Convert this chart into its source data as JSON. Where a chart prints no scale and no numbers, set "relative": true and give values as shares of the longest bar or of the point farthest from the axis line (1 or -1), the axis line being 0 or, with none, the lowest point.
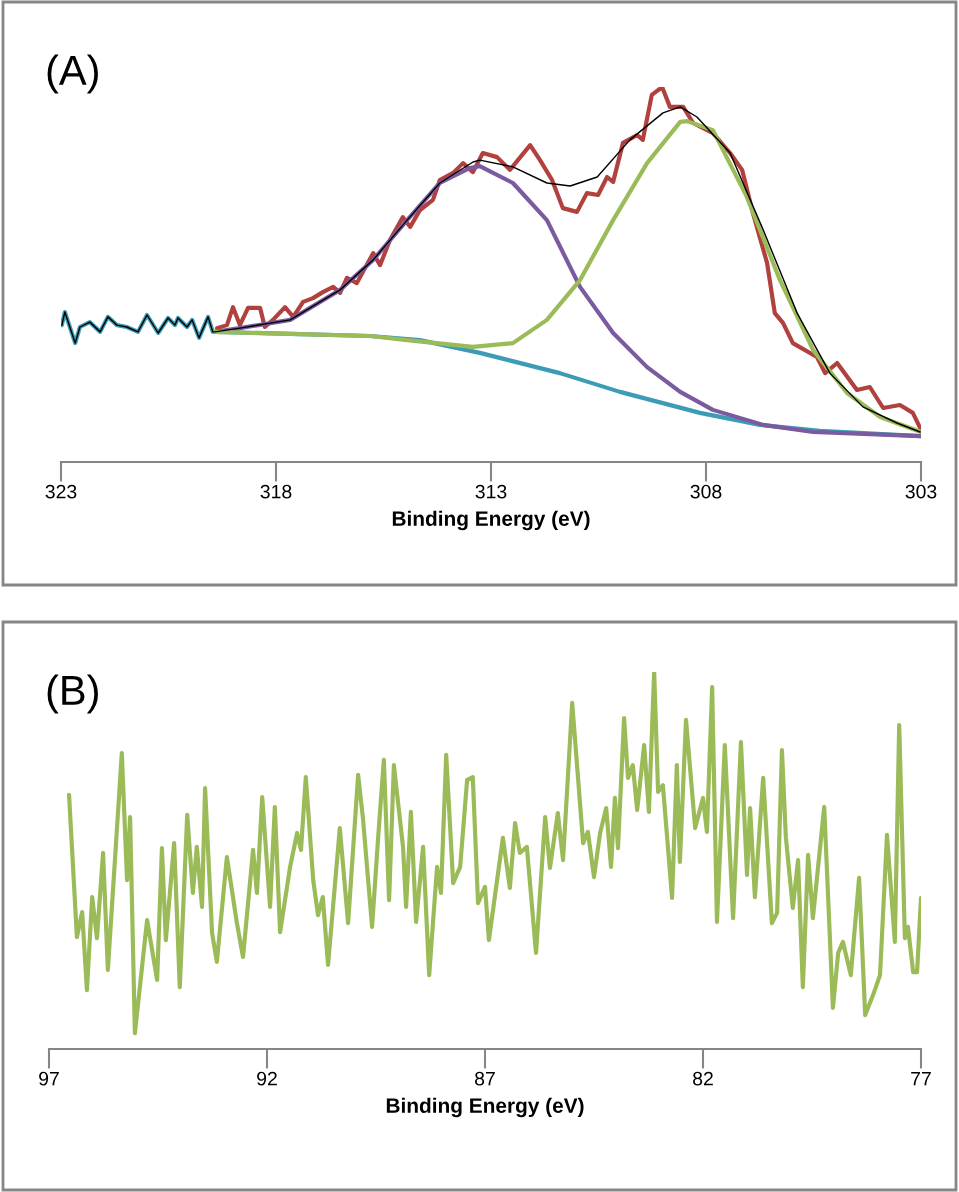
{
  "chart_data": [
    {
      "type": "line",
      "title": "(A)",
      "xlabel": "Binding Energy (eV)",
      "relative": true,
      "xlim": [
        323,
        303
      ],
      "xticks": [
        323,
        318,
        313,
        308,
        303
      ],
      "grid": false,
      "legend": false,
      "marker": "none",
      "line_style": "solid",
      "series": [
        {
          "color": "#b0413e",
          "x": [
            319.37,
            319.14,
            319.0,
            318.84,
            318.65,
            318.37,
            318.26,
            318.07,
            317.79,
            317.6,
            317.37,
            317.14,
            316.91,
            316.67,
            316.51,
            316.35,
            316.12,
            315.74,
            315.58,
            315.35,
            315.05,
            314.88,
            314.65,
            314.35,
            314.19,
            313.88,
            313.65,
            313.42,
            313.19,
            312.86,
            312.56,
            312.09,
            311.86,
            311.58,
            311.33,
            311.0,
            310.77,
            310.51,
            310.3,
            310.16,
            309.93,
            309.6,
            309.47,
            309.26,
            309.02,
            308.84,
            308.53,
            308.3,
            307.84,
            307.44,
            307.16,
            306.91,
            306.58,
            306.4,
            306.21,
            305.98,
            305.42,
            305.23,
            304.95,
            304.49,
            304.19,
            303.88,
            303.49,
            303.19,
            303.02
          ],
          "values": [
            0.357,
            0.365,
            0.413,
            0.365,
            0.411,
            0.411,
            0.36,
            0.379,
            0.413,
            0.387,
            0.427,
            0.437,
            0.453,
            0.467,
            0.451,
            0.491,
            0.477,
            0.557,
            0.525,
            0.592,
            0.653,
            0.627,
            0.672,
            0.699,
            0.752,
            0.771,
            0.797,
            0.773,
            0.824,
            0.813,
            0.779,
            0.845,
            0.805,
            0.752,
            0.677,
            0.667,
            0.717,
            0.712,
            0.76,
            0.747,
            0.851,
            0.872,
            0.859,
            0.979,
            1.0,
            0.947,
            0.947,
            0.904,
            0.877,
            0.824,
            0.779,
            0.664,
            0.531,
            0.397,
            0.371,
            0.317,
            0.28,
            0.237,
            0.264,
            0.192,
            0.2,
            0.144,
            0.152,
            0.131,
            0.091
          ]
        },
        {
          "color": "#3c9bb5",
          "x": [
            322.98,
            322.91,
            322.67,
            322.56,
            322.33,
            322.09,
            321.91,
            321.7,
            321.47,
            321.21,
            321.0,
            320.74,
            320.51,
            320.35,
            320.28,
            320.07,
            319.95,
            319.79,
            319.58,
            319.47,
            319.42,
            317.44,
            315.81,
            314.65,
            313.26,
            311.4,
            310.0,
            308.14,
            306.74,
            305.35,
            303.0
          ],
          "values": [
            0.365,
            0.4,
            0.317,
            0.36,
            0.373,
            0.347,
            0.387,
            0.365,
            0.36,
            0.347,
            0.392,
            0.344,
            0.384,
            0.365,
            0.384,
            0.36,
            0.379,
            0.331,
            0.387,
            0.347,
            0.347,
            0.341,
            0.336,
            0.325,
            0.291,
            0.237,
            0.187,
            0.131,
            0.099,
            0.083,
            0.069
          ]
        },
        {
          "color": "#7b5aa0",
          "x": [
            319.42,
            318.84,
            317.67,
            316.51,
            315.74,
            314.95,
            314.19,
            313.49,
            313.26,
            312.49,
            311.7,
            310.93,
            310.16,
            309.37,
            308.6,
            307.84,
            306.67,
            305.51,
            303.0
          ],
          "values": [
            0.347,
            0.357,
            0.379,
            0.459,
            0.539,
            0.645,
            0.744,
            0.784,
            0.789,
            0.744,
            0.645,
            0.467,
            0.344,
            0.253,
            0.187,
            0.139,
            0.099,
            0.08,
            0.069
          ]
        },
        {
          "color": "#9bbb59",
          "x": [
            319.42,
            317.44,
            315.81,
            314.95,
            313.42,
            312.49,
            311.7,
            310.93,
            310.16,
            309.37,
            308.6,
            308.44,
            307.84,
            307.05,
            306.28,
            305.51,
            304.72,
            303.95,
            303.0
          ],
          "values": [
            0.347,
            0.341,
            0.336,
            0.325,
            0.307,
            0.317,
            0.379,
            0.485,
            0.645,
            0.797,
            0.907,
            0.909,
            0.885,
            0.707,
            0.485,
            0.299,
            0.184,
            0.12,
            0.08
          ]
        },
        {
          "color": "#000000",
          "x": [
            322.98,
            322.91,
            322.67,
            322.56,
            322.33,
            322.09,
            321.91,
            321.7,
            321.47,
            321.21,
            321.0,
            320.74,
            320.51,
            320.35,
            320.28,
            320.07,
            319.95,
            319.79,
            319.58,
            319.47,
            319.42,
            318.84,
            317.67,
            316.51,
            315.74,
            314.95,
            314.19,
            313.42,
            313.26,
            312.49,
            311.7,
            311.16,
            310.53,
            309.77,
            309.0,
            308.6,
            308.21,
            307.44,
            306.67,
            305.88,
            305.12,
            304.35,
            303.56,
            303.02
          ],
          "values": [
            0.365,
            0.4,
            0.317,
            0.36,
            0.373,
            0.347,
            0.387,
            0.365,
            0.36,
            0.347,
            0.392,
            0.344,
            0.384,
            0.365,
            0.384,
            0.36,
            0.379,
            0.331,
            0.387,
            0.347,
            0.347,
            0.357,
            0.379,
            0.459,
            0.539,
            0.645,
            0.744,
            0.8,
            0.805,
            0.787,
            0.744,
            0.736,
            0.76,
            0.859,
            0.931,
            0.947,
            0.92,
            0.824,
            0.619,
            0.397,
            0.237,
            0.147,
            0.104,
            0.08
          ]
        }
      ]
    },
    {
      "type": "line",
      "title": "(B)",
      "xlabel": "Binding Energy (eV)",
      "relative": true,
      "xlim": [
        97,
        77
      ],
      "xticks": [
        97,
        92,
        87,
        82,
        77
      ],
      "grid": false,
      "legend": false,
      "marker": "none",
      "line_style": "solid",
      "series": [
        {
          "color": "#9bbb59",
          "x": [
            96.54,
            96.36,
            96.24,
            96.13,
            96.01,
            95.9,
            95.76,
            95.65,
            95.33,
            95.21,
            95.14,
            95.03,
            94.75,
            94.52,
            94.41,
            94.32,
            94.13,
            94.0,
            93.83,
            93.7,
            93.61,
            93.49,
            93.42,
            93.26,
            93.15,
            92.92,
            92.69,
            92.55,
            92.32,
            92.23,
            92.11,
            91.93,
            91.82,
            91.7,
            91.47,
            91.31,
            91.22,
            91.11,
            90.94,
            90.83,
            90.72,
            90.6,
            90.33,
            90.14,
            89.91,
            89.8,
            89.59,
            89.45,
            89.32,
            89.2,
            89.09,
            88.88,
            88.81,
            88.7,
            88.58,
            88.42,
            88.28,
            88.1,
            88.01,
            87.89,
            87.73,
            87.57,
            87.41,
            87.28,
            87.16,
            87.0,
            86.91,
            86.59,
            86.43,
            86.31,
            86.2,
            86.04,
            85.83,
            85.62,
            85.51,
            85.33,
            85.21,
            85.0,
            84.75,
            84.64,
            84.5,
            84.36,
            84.22,
            84.11,
            84.02,
            83.95,
            83.81,
            83.72,
            83.61,
            83.51,
            83.35,
            83.24,
            83.12,
            83.03,
            82.92,
            82.71,
            82.6,
            82.53,
            82.39,
            82.18,
            82.0,
            81.91,
            81.79,
            81.68,
            81.5,
            81.31,
            81.13,
            80.99,
            80.92,
            80.81,
            80.62,
            80.42,
            80.3,
            80.19,
            80.1,
            79.94,
            79.82,
            79.71,
            79.59,
            79.48,
            79.22,
            79.02,
            78.9,
            78.79,
            78.61,
            78.42,
            78.28,
            78.1,
            77.94,
            77.78,
            77.6,
            77.5,
            77.37,
            77.3,
            77.18,
            77.09,
            77.0
          ],
          "values": [
            0.674,
            0.297,
            0.363,
            0.156,
            0.403,
            0.294,
            0.52,
            0.21,
            0.785,
            0.448,
            0.615,
            0.042,
            0.342,
            0.183,
            0.533,
            0.289,
            0.546,
            0.164,
            0.621,
            0.414,
            0.536,
            0.377,
            0.692,
            0.308,
            0.231,
            0.509,
            0.334,
            0.244,
            0.528,
            0.414,
            0.668,
            0.377,
            0.642,
            0.31,
            0.483,
            0.573,
            0.528,
            0.721,
            0.448,
            0.355,
            0.403,
            0.223,
            0.586,
            0.334,
            0.727,
            0.613,
            0.324,
            0.562,
            0.767,
            0.395,
            0.753,
            0.536,
            0.377,
            0.629,
            0.337,
            0.536,
            0.196,
            0.483,
            0.414,
            0.78,
            0.44,
            0.483,
            0.714,
            0.721,
            0.387,
            0.43,
            0.289,
            0.56,
            0.427,
            0.599,
            0.52,
            0.536,
            0.255,
            0.615,
            0.48,
            0.626,
            0.501,
            0.918,
            0.546,
            0.576,
            0.456,
            0.573,
            0.639,
            0.483,
            0.666,
            0.533,
            0.878,
            0.719,
            0.753,
            0.634,
            0.806,
            0.629,
            1.0,
            0.682,
            0.7,
            0.401,
            0.753,
            0.496,
            0.873,
            0.586,
            0.666,
            0.576,
            0.96,
            0.337,
            0.806,
            0.347,
            0.814,
            0.462,
            0.639,
            0.403,
            0.719,
            0.334,
            0.361,
            0.793,
            0.562,
            0.374,
            0.501,
            0.164,
            0.515,
            0.347,
            0.642,
            0.109,
            0.255,
            0.284,
            0.196,
            0.454,
            0.09,
            0.143,
            0.196,
            0.568,
            0.284,
            0.859,
            0.294,
            0.324,
            0.204,
            0.204,
            0.401
          ]
        }
      ]
    }
  ]
}
